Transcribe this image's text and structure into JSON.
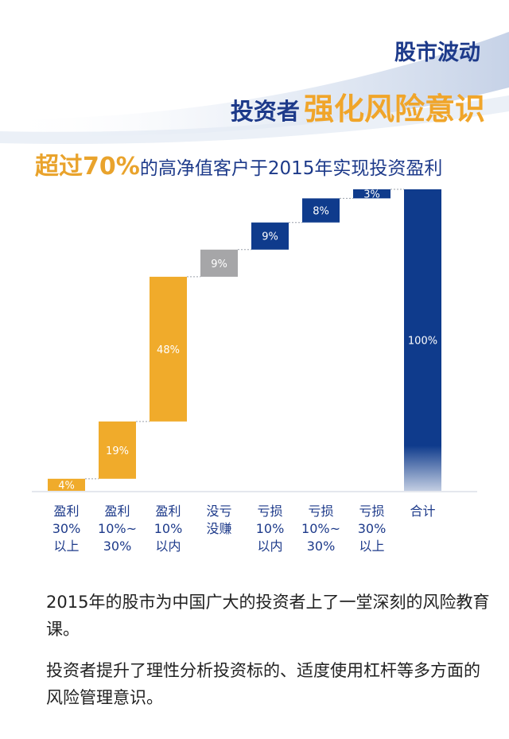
{
  "header": {
    "line1": "股市波动",
    "line2_prefix": "投资者",
    "line2_highlight": "强化风险意识"
  },
  "subtitle": {
    "highlight": "超过70%",
    "rest": "的高净值客户于2015年实现投资盈利"
  },
  "chart_data": {
    "type": "bar",
    "subtype": "waterfall",
    "unit": "%",
    "categories": [
      [
        "盈利",
        "30%",
        "以上"
      ],
      [
        "盈利",
        "10%~",
        "30%"
      ],
      [
        "盈利",
        "10%",
        "以内"
      ],
      [
        "没亏",
        "没赚"
      ],
      [
        "亏损",
        "10%",
        "以内"
      ],
      [
        "亏损",
        "10%~",
        "30%"
      ],
      [
        "亏损",
        "30%",
        "以上"
      ],
      [
        "合计"
      ]
    ],
    "values": [
      4,
      19,
      48,
      9,
      9,
      8,
      3,
      100
    ],
    "labels": [
      "4%",
      "19%",
      "48%",
      "9%",
      "9%",
      "8%",
      "3%",
      "100%"
    ],
    "colors": [
      "#f0ab2b",
      "#f0ab2b",
      "#f0ab2b",
      "#a6a6a8",
      "#0f3b8c",
      "#0f3b8c",
      "#0f3b8c",
      "#0f3b8c"
    ],
    "ylim": [
      0,
      100
    ],
    "grid": false,
    "legend": "none"
  },
  "paragraphs": [
    "2015年的股市为中国广大的投资者上了一堂深刻的风险教育课。",
    "投资者提升了理性分析投资标的、适度使用杠杆等多方面的风险管理意识。"
  ]
}
